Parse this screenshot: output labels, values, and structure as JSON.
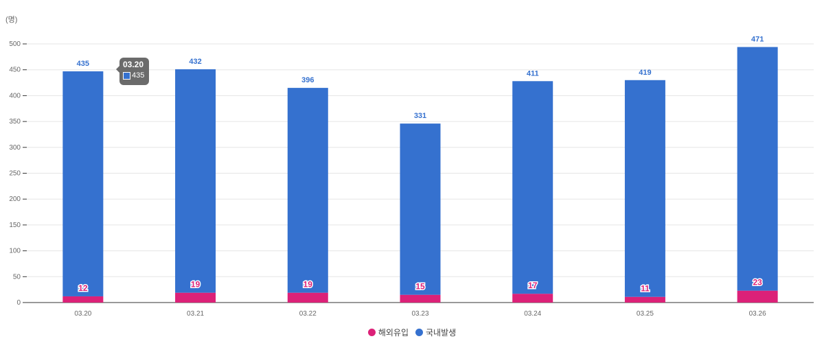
{
  "unit_label": "(명)",
  "colors": {
    "overseas": "#dc2178",
    "domestic": "#3571cf",
    "grid": "#e5e5e5",
    "axis": "#333333",
    "tick_text": "#666666"
  },
  "chart_data": {
    "type": "bar",
    "stacked": true,
    "categories": [
      "03.20",
      "03.21",
      "03.22",
      "03.23",
      "03.24",
      "03.25",
      "03.26"
    ],
    "series": [
      {
        "name": "해외유입",
        "values": [
          12,
          19,
          19,
          15,
          17,
          11,
          23
        ]
      },
      {
        "name": "국내발생",
        "values": [
          435,
          432,
          396,
          331,
          411,
          419,
          471
        ]
      }
    ],
    "ylim": [
      0,
      500
    ],
    "yticks": [
      0,
      50,
      100,
      150,
      200,
      250,
      300,
      350,
      400,
      450,
      500
    ],
    "grid": true,
    "legend_position": "bottom"
  },
  "tooltip": {
    "title": "03.20",
    "value": "435"
  }
}
